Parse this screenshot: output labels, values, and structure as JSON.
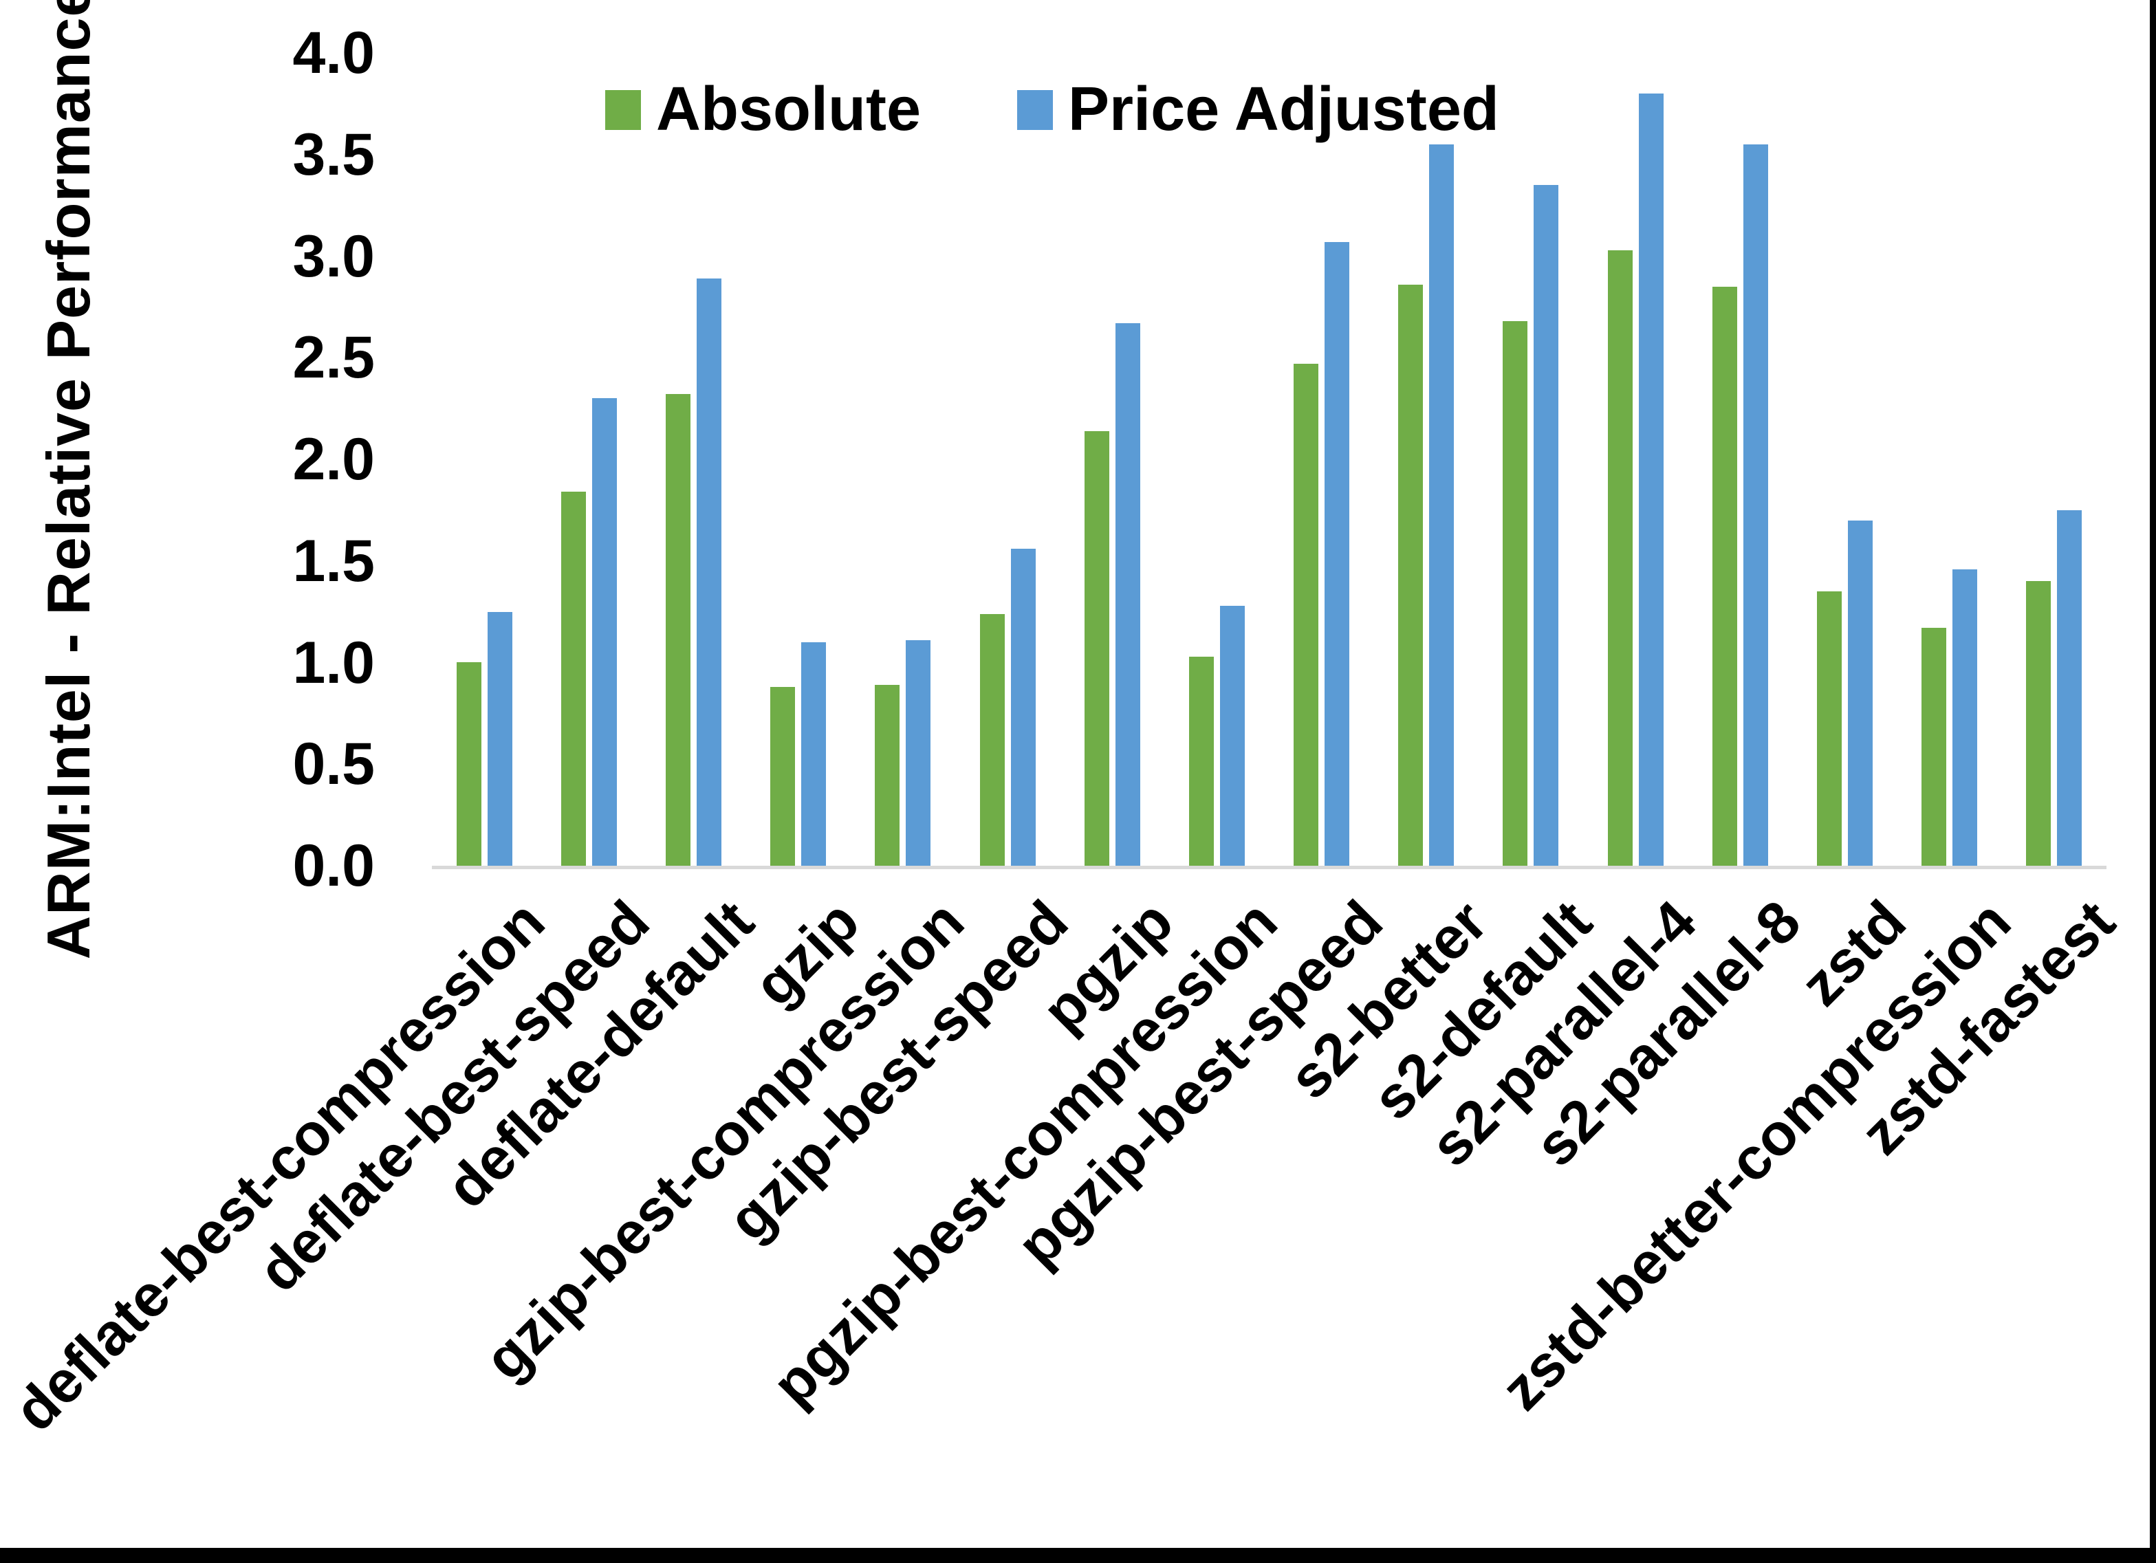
{
  "legend": {
    "absolute_label": "Absolute",
    "price_adjusted_label": "Price Adjusted"
  },
  "y_axis": {
    "title": "ARM:Intel - Relative Performance",
    "tick_labels": [
      "0.0",
      "0.5",
      "1.0",
      "1.5",
      "2.0",
      "2.5",
      "3.0",
      "3.5",
      "4.0"
    ]
  },
  "colors": {
    "absolute": "#70AD47",
    "price_adjusted": "#5B9BD5",
    "axis_line": "#D9D9D9",
    "text": "#000000",
    "frame_border": "#000000"
  },
  "chart_data": {
    "type": "bar",
    "title": "",
    "xlabel": "",
    "ylabel": "ARM:Intel - Relative Performance",
    "ylim": [
      0.0,
      4.0
    ],
    "ytick_step": 0.5,
    "grid": false,
    "legend_position": "top-center",
    "categories": [
      "deflate-best-compression",
      "deflate-best-speed",
      "deflate-default",
      "gzip",
      "gzip-best-compression",
      "gzip-best-speed",
      "pgzip",
      "pgzip-best-compression",
      "pgzip-best-speed",
      "s2-better",
      "s2-default",
      "s2-parallel-4",
      "s2-parallel-8",
      "zstd",
      "zstd-better-compression",
      "zstd-fastest"
    ],
    "series": [
      {
        "name": "Absolute",
        "color": "#70AD47",
        "values": [
          1.0,
          1.84,
          2.32,
          0.88,
          0.89,
          1.24,
          2.14,
          1.03,
          2.47,
          2.86,
          2.68,
          3.03,
          2.85,
          1.35,
          1.17,
          1.4
        ]
      },
      {
        "name": "Price Adjusted",
        "color": "#5B9BD5",
        "values": [
          1.25,
          2.3,
          2.89,
          1.1,
          1.11,
          1.56,
          2.67,
          1.28,
          3.07,
          3.55,
          3.35,
          3.8,
          3.55,
          1.7,
          1.46,
          1.75
        ]
      }
    ]
  }
}
